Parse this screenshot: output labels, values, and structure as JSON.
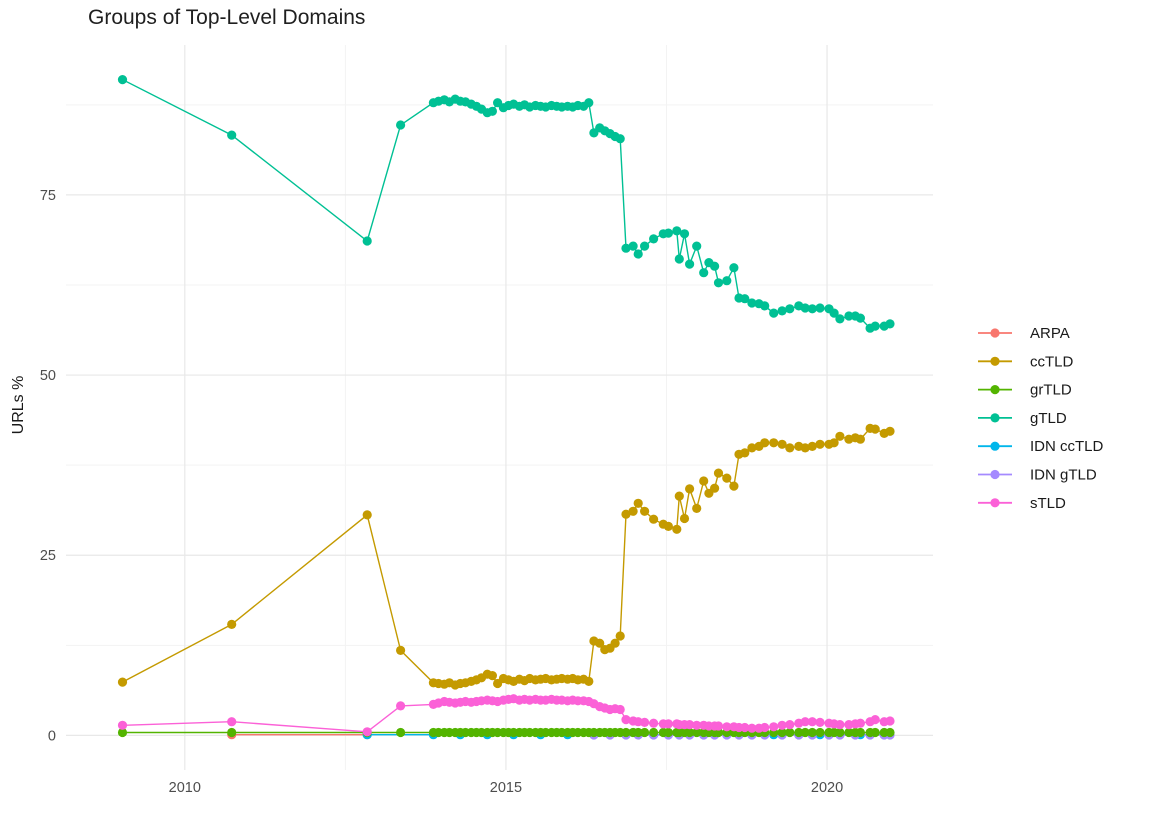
{
  "chart_data": {
    "type": "line",
    "title": "Groups of Top-Level Domains",
    "ylabel": "URLs %",
    "xlabel": "",
    "legend_position": "right",
    "grid": true,
    "xlim": [
      2008.15,
      2021.65
    ],
    "ylim": [
      -4.8,
      95.8
    ],
    "x_ticks": [
      2010,
      2015,
      2020
    ],
    "x_tick_labels": [
      "2010",
      "2015",
      "2020"
    ],
    "x_minor_ticks": [
      2012.5,
      2017.5
    ],
    "y_ticks": [
      0,
      25,
      50,
      75
    ],
    "y_tick_labels": [
      "0",
      "25",
      "50",
      "75"
    ],
    "y_minor_ticks": [
      12.5,
      37.5,
      62.5,
      87.5
    ],
    "colors": {
      "major_grid": "#e8e8e8",
      "minor_grid": "#f3f3f3",
      "tick_label": "#4d4d4d",
      "title_text": "#1f1f1f",
      "axis_title": "#1a1a1a",
      "legend_text": "#1a1a1a",
      "background": "#ffffff"
    },
    "series": [
      {
        "name": "ARPA",
        "color": "#F8766D",
        "x": [
          2010.73,
          2012.84
        ],
        "y": [
          0.1,
          0.1
        ]
      },
      {
        "name": "ccTLD",
        "color": "#C49A00",
        "x": [
          2009.03,
          2010.73,
          2012.84,
          2013.36,
          2013.87,
          2013.95,
          2014.04,
          2014.12,
          2014.21,
          2014.29,
          2014.37,
          2014.46,
          2014.54,
          2014.62,
          2014.71,
          2014.79,
          2014.87,
          2014.96,
          2015.04,
          2015.12,
          2015.21,
          2015.29,
          2015.37,
          2015.46,
          2015.54,
          2015.62,
          2015.71,
          2015.79,
          2015.87,
          2015.96,
          2016.04,
          2016.12,
          2016.21,
          2016.29,
          2016.37,
          2016.46,
          2016.54,
          2016.62,
          2016.7,
          2016.78,
          2016.87,
          2016.98,
          2017.06,
          2017.16,
          2017.3,
          2017.45,
          2017.53,
          2017.66,
          2017.7,
          2017.78,
          2017.86,
          2017.97,
          2018.08,
          2018.16,
          2018.25,
          2018.31,
          2018.44,
          2018.55,
          2018.63,
          2018.72,
          2018.83,
          2018.94,
          2019.03,
          2019.17,
          2019.3,
          2019.42,
          2019.56,
          2019.66,
          2019.77,
          2019.89,
          2020.03,
          2020.11,
          2020.2,
          2020.34,
          2020.44,
          2020.52,
          2020.67,
          2020.75,
          2020.89,
          2020.98
        ],
        "y": [
          7.4,
          15.4,
          30.6,
          11.8,
          7.3,
          7.2,
          7.1,
          7.3,
          7.0,
          7.2,
          7.3,
          7.5,
          7.7,
          8.0,
          8.5,
          8.3,
          7.2,
          7.9,
          7.7,
          7.5,
          7.8,
          7.6,
          7.9,
          7.7,
          7.8,
          7.9,
          7.7,
          7.8,
          7.9,
          7.8,
          7.9,
          7.7,
          7.8,
          7.5,
          13.1,
          12.8,
          11.9,
          12.1,
          12.8,
          13.8,
          30.7,
          31.1,
          32.2,
          31.1,
          30.0,
          29.3,
          29.0,
          28.6,
          33.2,
          30.1,
          34.2,
          31.5,
          35.3,
          33.6,
          34.3,
          36.4,
          35.7,
          34.6,
          39.0,
          39.2,
          39.9,
          40.1,
          40.6,
          40.6,
          40.4,
          39.9,
          40.1,
          39.9,
          40.1,
          40.4,
          40.4,
          40.6,
          41.5,
          41.1,
          41.3,
          41.1,
          42.6,
          42.5,
          41.9,
          42.2
        ]
      },
      {
        "name": "grTLD",
        "color": "#53B400",
        "x": [
          2009.03,
          2010.73,
          2012.84,
          2013.36,
          2013.87,
          2013.95,
          2014.04,
          2014.12,
          2014.21,
          2014.29,
          2014.37,
          2014.46,
          2014.54,
          2014.62,
          2014.71,
          2014.79,
          2014.87,
          2014.96,
          2015.04,
          2015.12,
          2015.21,
          2015.29,
          2015.37,
          2015.46,
          2015.54,
          2015.62,
          2015.71,
          2015.79,
          2015.87,
          2015.96,
          2016.04,
          2016.12,
          2016.21,
          2016.29,
          2016.37,
          2016.46,
          2016.54,
          2016.62,
          2016.7,
          2016.78,
          2016.87,
          2016.98,
          2017.06,
          2017.16,
          2017.3,
          2017.45,
          2017.53,
          2017.66,
          2017.7,
          2017.78,
          2017.86,
          2017.97,
          2018.08,
          2018.16,
          2018.25,
          2018.31,
          2018.44,
          2018.55,
          2018.63,
          2018.72,
          2018.83,
          2018.94,
          2019.03,
          2019.17,
          2019.3,
          2019.42,
          2019.56,
          2019.66,
          2019.77,
          2019.89,
          2020.03,
          2020.11,
          2020.2,
          2020.34,
          2020.44,
          2020.52,
          2020.67,
          2020.75,
          2020.89,
          2020.98
        ],
        "y": [
          0.4,
          0.4,
          0.4,
          0.4,
          0.4,
          0.4,
          0.4,
          0.4,
          0.4,
          0.4,
          0.4,
          0.4,
          0.4,
          0.4,
          0.4,
          0.4,
          0.4,
          0.4,
          0.4,
          0.4,
          0.4,
          0.4,
          0.4,
          0.4,
          0.4,
          0.4,
          0.4,
          0.4,
          0.4,
          0.4,
          0.4,
          0.4,
          0.4,
          0.4,
          0.4,
          0.4,
          0.4,
          0.4,
          0.4,
          0.4,
          0.4,
          0.4,
          0.4,
          0.4,
          0.4,
          0.4,
          0.4,
          0.4,
          0.4,
          0.4,
          0.4,
          0.4,
          0.4,
          0.4,
          0.4,
          0.4,
          0.4,
          0.4,
          0.4,
          0.4,
          0.4,
          0.4,
          0.4,
          0.4,
          0.4,
          0.4,
          0.4,
          0.4,
          0.4,
          0.4,
          0.4,
          0.4,
          0.4,
          0.4,
          0.4,
          0.4,
          0.4,
          0.4,
          0.4,
          0.4
        ]
      },
      {
        "name": "gTLD",
        "color": "#00C094",
        "x": [
          2009.03,
          2010.73,
          2012.84,
          2013.36,
          2013.87,
          2013.95,
          2014.04,
          2014.12,
          2014.21,
          2014.29,
          2014.37,
          2014.46,
          2014.54,
          2014.62,
          2014.71,
          2014.79,
          2014.87,
          2014.96,
          2015.04,
          2015.12,
          2015.21,
          2015.29,
          2015.37,
          2015.46,
          2015.54,
          2015.62,
          2015.71,
          2015.79,
          2015.87,
          2015.96,
          2016.04,
          2016.12,
          2016.21,
          2016.29,
          2016.37,
          2016.46,
          2016.54,
          2016.62,
          2016.7,
          2016.78,
          2016.87,
          2016.98,
          2017.06,
          2017.16,
          2017.3,
          2017.45,
          2017.53,
          2017.66,
          2017.7,
          2017.78,
          2017.86,
          2017.97,
          2018.08,
          2018.16,
          2018.25,
          2018.31,
          2018.44,
          2018.55,
          2018.63,
          2018.72,
          2018.83,
          2018.94,
          2019.03,
          2019.17,
          2019.3,
          2019.42,
          2019.56,
          2019.66,
          2019.77,
          2019.89,
          2020.03,
          2020.11,
          2020.2,
          2020.34,
          2020.44,
          2020.52,
          2020.67,
          2020.75,
          2020.89,
          2020.98
        ],
        "y": [
          91.0,
          83.3,
          68.6,
          84.7,
          87.8,
          88.0,
          88.2,
          87.9,
          88.3,
          88.0,
          87.9,
          87.6,
          87.3,
          86.9,
          86.4,
          86.6,
          87.8,
          87.1,
          87.4,
          87.6,
          87.3,
          87.5,
          87.2,
          87.4,
          87.3,
          87.2,
          87.4,
          87.3,
          87.2,
          87.3,
          87.2,
          87.4,
          87.3,
          87.8,
          83.6,
          84.3,
          83.9,
          83.5,
          83.1,
          82.8,
          67.6,
          67.9,
          66.8,
          67.9,
          68.9,
          69.6,
          69.7,
          70.0,
          66.1,
          69.6,
          65.4,
          67.9,
          64.2,
          65.6,
          65.1,
          62.8,
          63.1,
          64.9,
          60.7,
          60.6,
          60.0,
          59.9,
          59.6,
          58.6,
          58.9,
          59.2,
          59.6,
          59.3,
          59.2,
          59.3,
          59.2,
          58.6,
          57.8,
          58.2,
          58.2,
          57.9,
          56.5,
          56.8,
          56.8,
          57.1
        ]
      },
      {
        "name": "IDN ccTLD",
        "color": "#00B6EB",
        "x": [
          2012.84,
          2013.87,
          2014.29,
          2014.71,
          2015.12,
          2015.54,
          2015.96,
          2016.37,
          2016.87,
          2017.3,
          2017.7,
          2018.08,
          2018.44,
          2018.83,
          2019.17,
          2019.56,
          2019.89,
          2020.2,
          2020.52,
          2020.89
        ],
        "y": [
          0.1,
          0.1,
          0.1,
          0.1,
          0.1,
          0.1,
          0.1,
          0.1,
          0.1,
          0.1,
          0.1,
          0.1,
          0.1,
          0.1,
          0.1,
          0.1,
          0.1,
          0.1,
          0.1,
          0.1
        ]
      },
      {
        "name": "IDN gTLD",
        "color": "#A58AFF",
        "x": [
          2016.37,
          2016.62,
          2016.87,
          2017.06,
          2017.3,
          2017.53,
          2017.7,
          2017.86,
          2018.08,
          2018.25,
          2018.44,
          2018.63,
          2018.83,
          2019.03,
          2019.3,
          2019.56,
          2019.77,
          2020.03,
          2020.2,
          2020.44,
          2020.67,
          2020.89,
          2020.98
        ],
        "y": [
          0.05,
          0.05,
          0.05,
          0.05,
          0.05,
          0.05,
          0.05,
          0.05,
          0.05,
          0.05,
          0.05,
          0.05,
          0.05,
          0.05,
          0.05,
          0.05,
          0.05,
          0.05,
          0.05,
          0.05,
          0.05,
          0.05,
          0.05
        ]
      },
      {
        "name": "sTLD",
        "color": "#FB61D7",
        "x": [
          2009.03,
          2010.73,
          2012.84,
          2013.36,
          2013.87,
          2013.95,
          2014.04,
          2014.12,
          2014.21,
          2014.29,
          2014.37,
          2014.46,
          2014.54,
          2014.62,
          2014.71,
          2014.79,
          2014.87,
          2014.96,
          2015.04,
          2015.12,
          2015.21,
          2015.29,
          2015.37,
          2015.46,
          2015.54,
          2015.62,
          2015.71,
          2015.79,
          2015.87,
          2015.96,
          2016.04,
          2016.12,
          2016.21,
          2016.29,
          2016.37,
          2016.46,
          2016.54,
          2016.62,
          2016.7,
          2016.78,
          2016.87,
          2016.98,
          2017.06,
          2017.16,
          2017.3,
          2017.45,
          2017.53,
          2017.66,
          2017.7,
          2017.78,
          2017.86,
          2017.97,
          2018.08,
          2018.16,
          2018.25,
          2018.31,
          2018.44,
          2018.55,
          2018.63,
          2018.72,
          2018.83,
          2018.94,
          2019.03,
          2019.17,
          2019.3,
          2019.42,
          2019.56,
          2019.66,
          2019.77,
          2019.89,
          2020.03,
          2020.11,
          2020.2,
          2020.34,
          2020.44,
          2020.52,
          2020.67,
          2020.75,
          2020.89,
          2020.98
        ],
        "y": [
          1.4,
          1.9,
          0.5,
          4.1,
          4.3,
          4.5,
          4.7,
          4.6,
          4.5,
          4.6,
          4.7,
          4.6,
          4.7,
          4.8,
          4.9,
          4.8,
          4.7,
          4.9,
          5.0,
          5.1,
          4.9,
          5.0,
          4.9,
          5.0,
          4.9,
          4.9,
          5.0,
          4.9,
          4.9,
          4.8,
          4.9,
          4.8,
          4.8,
          4.7,
          4.4,
          4.0,
          3.8,
          3.6,
          3.7,
          3.6,
          2.2,
          2.0,
          1.9,
          1.8,
          1.7,
          1.6,
          1.6,
          1.6,
          1.5,
          1.5,
          1.5,
          1.4,
          1.4,
          1.3,
          1.3,
          1.3,
          1.2,
          1.2,
          1.1,
          1.1,
          1.0,
          1.0,
          1.1,
          1.2,
          1.4,
          1.5,
          1.7,
          1.9,
          1.9,
          1.8,
          1.7,
          1.6,
          1.5,
          1.5,
          1.6,
          1.7,
          1.9,
          2.2,
          1.9,
          2.0
        ]
      }
    ]
  }
}
